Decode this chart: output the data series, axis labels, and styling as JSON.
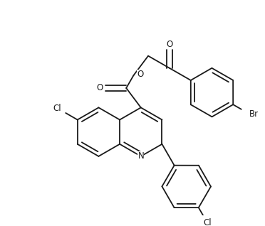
{
  "bg_color": "#ffffff",
  "line_color": "#1a1a1a",
  "line_width": 1.3,
  "font_size": 8.5,
  "figsize": [
    3.72,
    3.18
  ],
  "dpi": 100,
  "xlim": [
    0,
    372
  ],
  "ylim": [
    0,
    318
  ]
}
